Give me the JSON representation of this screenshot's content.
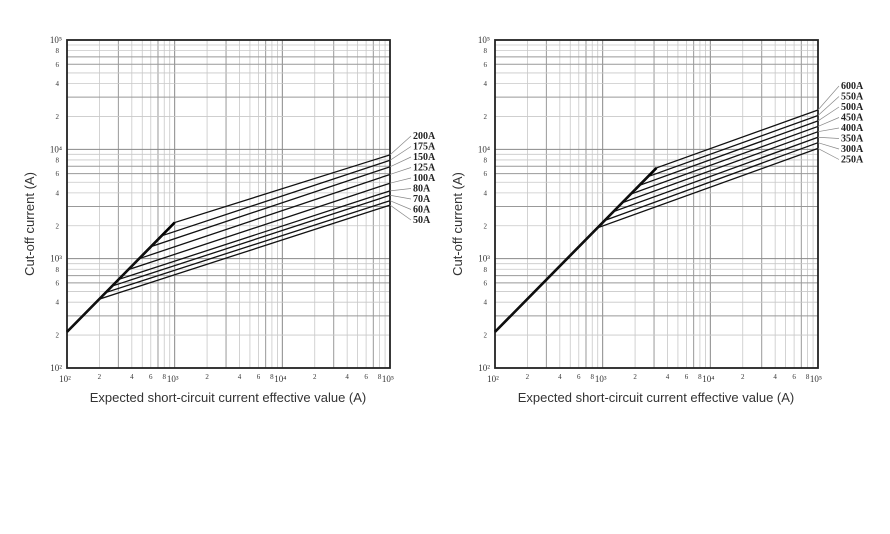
{
  "chart_data": [
    {
      "type": "line",
      "scale": "log-log",
      "xlabel": "Expected short-circuit current effective value (A)",
      "ylabel": "Cut-off current (A)",
      "xlim": [
        100,
        100000
      ],
      "ylim": [
        100,
        100000
      ],
      "decade_labels": [
        "10²",
        "10³",
        "10⁴",
        "10⁵"
      ],
      "minor_tick_labels": [
        "2",
        "4",
        "6",
        "8"
      ],
      "grid": true,
      "legend": "right",
      "diagonal_start": [
        100,
        214
      ],
      "series": [
        {
          "name": "200A",
          "knee": [
            1000,
            2140
          ],
          "end": [
            100000,
            8900
          ]
        },
        {
          "name": "175A",
          "knee": [
            759,
            1620
          ],
          "end": [
            100000,
            7940
          ]
        },
        {
          "name": "150A",
          "knee": [
            603,
            1290
          ],
          "end": [
            100000,
            6920
          ]
        },
        {
          "name": "125A",
          "knee": [
            468,
            1000
          ],
          "end": [
            100000,
            5890
          ]
        },
        {
          "name": "100A",
          "knee": [
            372,
            794
          ],
          "end": [
            100000,
            4900
          ]
        },
        {
          "name": "80A",
          "knee": [
            302,
            646
          ],
          "end": [
            100000,
            4170
          ]
        },
        {
          "name": "70A",
          "knee": [
            263,
            562
          ],
          "end": [
            100000,
            3800
          ]
        },
        {
          "name": "60A",
          "knee": [
            229,
            490
          ],
          "end": [
            100000,
            3390
          ]
        },
        {
          "name": "50A",
          "knee": [
            200,
            427
          ],
          "end": [
            100000,
            3090
          ]
        }
      ]
    },
    {
      "type": "line",
      "scale": "log-log",
      "xlabel": "Expected short-circuit current effective value (A)",
      "ylabel": "Cut-off current (A)",
      "xlim": [
        100,
        100000
      ],
      "ylim": [
        100,
        100000
      ],
      "decade_labels": [
        "10²",
        "10³",
        "10⁴",
        "10⁵"
      ],
      "minor_tick_labels": [
        "2",
        "4",
        "6",
        "8"
      ],
      "grid": true,
      "legend": "right",
      "diagonal_start": [
        100,
        214
      ],
      "series": [
        {
          "name": "600A",
          "knee": [
            3160,
            6760
          ],
          "end": [
            100000,
            22900
          ]
        },
        {
          "name": "550A",
          "knee": [
            2630,
            5620
          ],
          "end": [
            100000,
            20400
          ]
        },
        {
          "name": "500A",
          "knee": [
            2190,
            4680
          ],
          "end": [
            100000,
            18200
          ]
        },
        {
          "name": "450A",
          "knee": [
            1820,
            3890
          ],
          "end": [
            100000,
            16200
          ]
        },
        {
          "name": "400A",
          "knee": [
            1510,
            3240
          ],
          "end": [
            100000,
            14500
          ]
        },
        {
          "name": "350A",
          "knee": [
            1260,
            2690
          ],
          "end": [
            100000,
            12900
          ]
        },
        {
          "name": "300A",
          "knee": [
            1050,
            2240
          ],
          "end": [
            100000,
            11500
          ]
        },
        {
          "name": "250A",
          "knee": [
            891,
            1910
          ],
          "end": [
            100000,
            10200
          ]
        }
      ]
    }
  ]
}
